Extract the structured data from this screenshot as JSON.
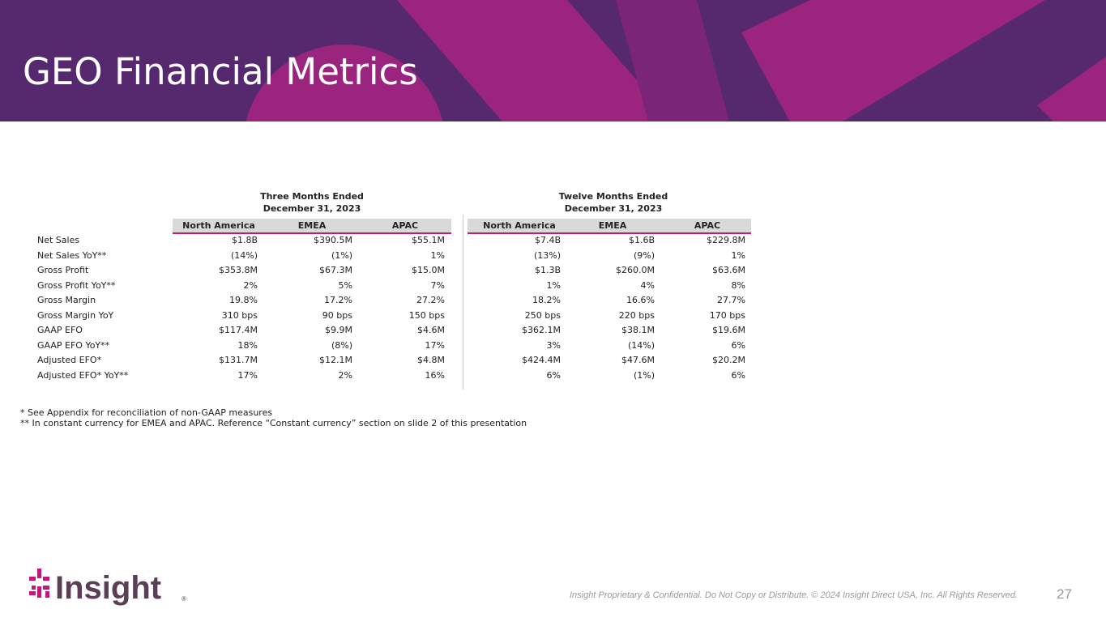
{
  "title": "GEO Financial Metrics",
  "table": {
    "groups": [
      {
        "lines": [
          "Three Months Ended",
          "December 31, 2023"
        ]
      },
      {
        "lines": [
          "Twelve Months Ended",
          "December 31, 2023"
        ]
      }
    ],
    "columns": [
      "North America",
      "EMEA",
      "APAC",
      "North America",
      "EMEA",
      "APAC"
    ],
    "rows": [
      {
        "label": "Net Sales",
        "values": [
          "$1.8B",
          "$390.5M",
          "$55.1M",
          "$7.4B",
          "$1.6B",
          "$229.8M"
        ]
      },
      {
        "label": "Net Sales YoY**",
        "values": [
          "(14%)",
          "(1%)",
          "1%",
          "(13%)",
          "(9%)",
          "1%"
        ]
      },
      {
        "label": "Gross Profit",
        "values": [
          "$353.8M",
          "$67.3M",
          "$15.0M",
          "$1.3B",
          "$260.0M",
          "$63.6M"
        ]
      },
      {
        "label": "Gross Profit YoY**",
        "values": [
          "2%",
          "5%",
          "7%",
          "1%",
          "4%",
          "8%"
        ]
      },
      {
        "label": "Gross Margin",
        "values": [
          "19.8%",
          "17.2%",
          "27.2%",
          "18.2%",
          "16.6%",
          "27.7%"
        ]
      },
      {
        "label": "Gross Margin YoY",
        "values": [
          "310 bps",
          "90 bps",
          "150 bps",
          "250 bps",
          "220 bps",
          "170 bps"
        ]
      },
      {
        "label": "GAAP EFO",
        "values": [
          "$117.4M",
          "$9.9M",
          "$4.6M",
          "$362.1M",
          "$38.1M",
          "$19.6M"
        ]
      },
      {
        "label": "GAAP EFO YoY**",
        "values": [
          "18%",
          "(8%)",
          "17%",
          "3%",
          "(14%)",
          "6%"
        ]
      },
      {
        "label": "Adjusted EFO*",
        "values": [
          "$131.7M",
          "$12.1M",
          "$4.8M",
          "$424.4M",
          "$47.6M",
          "$20.2M"
        ]
      },
      {
        "label": "Adjusted EFO* YoY**",
        "values": [
          "17%",
          "2%",
          "16%",
          "6%",
          "(1%)",
          "6%"
        ]
      }
    ]
  },
  "footnotes": [
    "* See Appendix for reconciliation of non-GAAP measures",
    "** In constant currency for EMEA and APAC. Reference “Constant currency” section on slide 2 of this presentation"
  ],
  "footer": {
    "logo": "Insight",
    "registered": "®",
    "confidential": "Insight Proprietary & Confidential. Do Not Copy or Distribute. © 2024 Insight Direct USA, Inc. All Rights Reserved.",
    "page": "27"
  }
}
